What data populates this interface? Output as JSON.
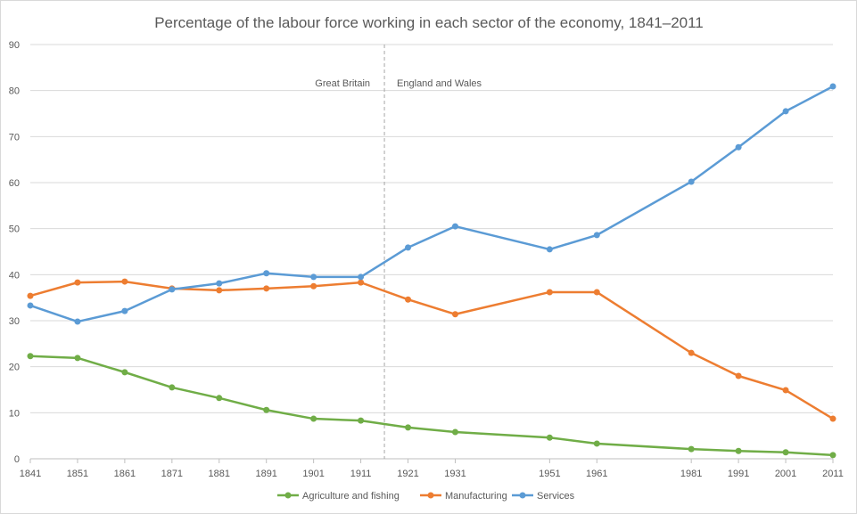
{
  "chart_data": {
    "type": "line",
    "title": "Percentage of the labour force working in each sector of the economy, 1841–2011",
    "xlabel": "",
    "ylabel": "",
    "ylim": [
      0,
      90
    ],
    "yticks": [
      0,
      10,
      20,
      30,
      40,
      50,
      60,
      70,
      80,
      90
    ],
    "grid": true,
    "legend": "bottom",
    "x": [
      1841,
      1851,
      1861,
      1871,
      1881,
      1891,
      1901,
      1911,
      1921,
      1931,
      1951,
      1961,
      1981,
      1991,
      2001,
      2011
    ],
    "series": [
      {
        "name": "Agriculture and fishing",
        "color": "#70ad47",
        "values": [
          22.3,
          21.9,
          18.8,
          15.5,
          13.2,
          10.6,
          8.7,
          8.3,
          6.8,
          5.8,
          4.6,
          3.3,
          2.1,
          1.7,
          1.4,
          0.8
        ]
      },
      {
        "name": "Manufacturing",
        "color": "#ed7d31",
        "values": [
          35.4,
          38.3,
          38.5,
          37.0,
          36.6,
          37.0,
          37.5,
          38.3,
          34.6,
          31.4,
          36.2,
          36.2,
          23.0,
          18.0,
          14.9,
          8.7
        ]
      },
      {
        "name": "Services",
        "color": "#5b9bd5",
        "values": [
          33.3,
          29.8,
          32.1,
          36.8,
          38.1,
          40.3,
          39.5,
          39.5,
          45.9,
          50.5,
          45.5,
          48.6,
          60.2,
          67.7,
          75.5,
          80.9
        ]
      }
    ],
    "annotations": {
      "divider_year": 1916,
      "left_label": "Great Britain",
      "right_label": "England and Wales"
    }
  }
}
